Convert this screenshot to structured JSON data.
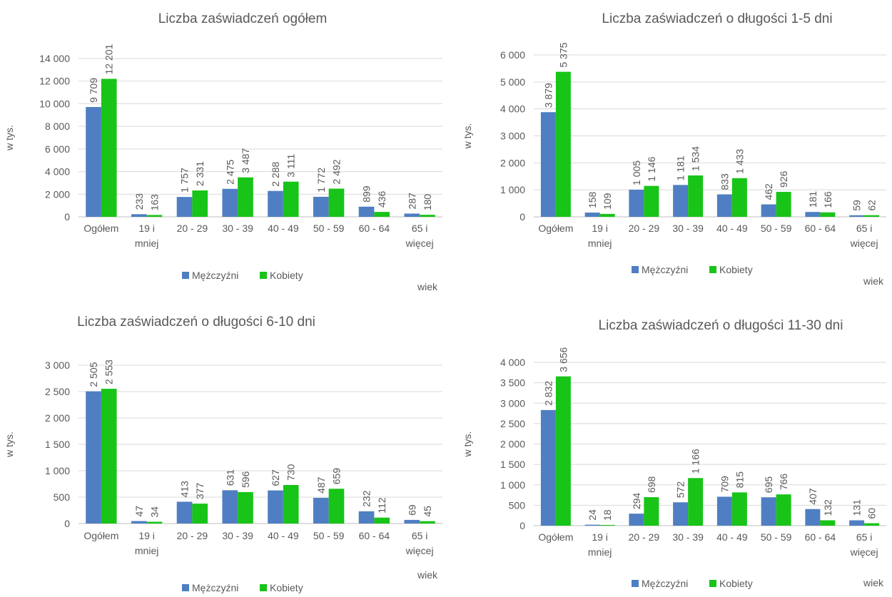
{
  "colors": {
    "men": "#4f7fc2",
    "women": "#18c418",
    "grid": "#d9d9d9",
    "text": "#595959"
  },
  "legend": {
    "men": "Mężczyźni",
    "women": "Kobiety"
  },
  "chart_data": [
    {
      "type": "bar",
      "title": "Liczba zaświadczeń ogółem",
      "xlabel": "wiek",
      "ylabel": "w tys.",
      "ylim": [
        0,
        14000
      ],
      "yticks": [
        0,
        2000,
        4000,
        6000,
        8000,
        10000,
        12000,
        14000
      ],
      "ytick_labels": [
        "0",
        "2 000",
        "4 000",
        "6 000",
        "8 000",
        "10 000",
        "12 000",
        "14 000"
      ],
      "categories": [
        [
          "Ogółem"
        ],
        [
          "19 i",
          "mniej"
        ],
        [
          "20 - 29"
        ],
        [
          "30 - 39"
        ],
        [
          "40 - 49"
        ],
        [
          "50 - 59"
        ],
        [
          "60 - 64"
        ],
        [
          "65 i",
          "więcej"
        ]
      ],
      "series": [
        {
          "name": "Mężczyźni",
          "values": [
            9709,
            233,
            1757,
            2475,
            2288,
            1772,
            899,
            287
          ],
          "labels": [
            "9 709",
            "233",
            "1 757",
            "2 475",
            "2 288",
            "1 772",
            "899",
            "287"
          ]
        },
        {
          "name": "Kobiety",
          "values": [
            12201,
            163,
            2331,
            3487,
            3111,
            2492,
            436,
            180
          ],
          "labels": [
            "12 201",
            "163",
            "2 331",
            "3 487",
            "3 111",
            "2 492",
            "436",
            "180"
          ]
        }
      ],
      "legend_position": "bottom",
      "grid": true
    },
    {
      "type": "bar",
      "title": "Liczba zaświadczeń o długości 1-5 dni",
      "xlabel": "wiek",
      "ylabel": "w tys.",
      "ylim": [
        0,
        6000
      ],
      "yticks": [
        0,
        1000,
        2000,
        3000,
        4000,
        5000,
        6000
      ],
      "ytick_labels": [
        "0",
        "1 000",
        "2 000",
        "3 000",
        "4 000",
        "5 000",
        "6 000"
      ],
      "categories": [
        [
          "Ogółem"
        ],
        [
          "19 i",
          "mniej"
        ],
        [
          "20 - 29"
        ],
        [
          "30 - 39"
        ],
        [
          "40 - 49"
        ],
        [
          "50 - 59"
        ],
        [
          "60 - 64"
        ],
        [
          "65 i",
          "więcej"
        ]
      ],
      "series": [
        {
          "name": "Mężczyźni",
          "values": [
            3879,
            158,
            1005,
            1181,
            833,
            462,
            181,
            59
          ],
          "labels": [
            "3 879",
            "158",
            "1 005",
            "1 181",
            "833",
            "462",
            "181",
            "59"
          ]
        },
        {
          "name": "Kobiety",
          "values": [
            5375,
            109,
            1146,
            1534,
            1433,
            926,
            166,
            62
          ],
          "labels": [
            "5 375",
            "109",
            "1 146",
            "1 534",
            "1 433",
            "926",
            "166",
            "62"
          ]
        }
      ],
      "legend_position": "bottom",
      "grid": true
    },
    {
      "type": "bar",
      "title": "Liczba zaświadczeń o długości 6-10 dni",
      "xlabel": "wiek",
      "ylabel": "w tys.",
      "ylim": [
        0,
        3000
      ],
      "yticks": [
        0,
        500,
        1000,
        1500,
        2000,
        2500,
        3000
      ],
      "ytick_labels": [
        "0",
        "500",
        "1 000",
        "1 500",
        "2 000",
        "2 500",
        "3 000"
      ],
      "categories": [
        [
          "Ogółem"
        ],
        [
          "19 i",
          "mniej"
        ],
        [
          "20 - 29"
        ],
        [
          "30 - 39"
        ],
        [
          "40 - 49"
        ],
        [
          "50 - 59"
        ],
        [
          "60 - 64"
        ],
        [
          "65 i",
          "więcej"
        ]
      ],
      "series": [
        {
          "name": "Mężczyźni",
          "values": [
            2505,
            47,
            413,
            631,
            627,
            487,
            232,
            69
          ],
          "labels": [
            "2 505",
            "47",
            "413",
            "631",
            "627",
            "487",
            "232",
            "69"
          ]
        },
        {
          "name": "Kobiety",
          "values": [
            2553,
            34,
            377,
            596,
            730,
            659,
            112,
            45
          ],
          "labels": [
            "2 553",
            "34",
            "377",
            "596",
            "730",
            "659",
            "112",
            "45"
          ]
        }
      ],
      "legend_position": "bottom",
      "grid": true
    },
    {
      "type": "bar",
      "title": "Liczba zaświadczeń o długości 11-30 dni",
      "xlabel": "wiek",
      "ylabel": "w tys.",
      "ylim": [
        0,
        4000
      ],
      "yticks": [
        0,
        500,
        1000,
        1500,
        2000,
        2500,
        3000,
        3500,
        4000
      ],
      "ytick_labels": [
        "0",
        "500",
        "1 000",
        "1 500",
        "2 000",
        "2 500",
        "3 000",
        "3 500",
        "4 000"
      ],
      "categories": [
        [
          "Ogółem"
        ],
        [
          "19 i",
          "mniej"
        ],
        [
          "20 - 29"
        ],
        [
          "30 - 39"
        ],
        [
          "40 - 49"
        ],
        [
          "50 - 59"
        ],
        [
          "60 - 64"
        ],
        [
          "65 i",
          "więcej"
        ]
      ],
      "series": [
        {
          "name": "Mężczyźni",
          "values": [
            2832,
            24,
            294,
            572,
            709,
            695,
            407,
            131
          ],
          "labels": [
            "2 832",
            "24",
            "294",
            "572",
            "709",
            "695",
            "407",
            "131"
          ]
        },
        {
          "name": "Kobiety",
          "values": [
            3656,
            18,
            698,
            1166,
            815,
            766,
            132,
            60
          ],
          "labels": [
            "3 656",
            "18",
            "698",
            "1 166",
            "815",
            "766",
            "132",
            "60"
          ]
        }
      ],
      "legend_position": "bottom",
      "grid": true
    }
  ]
}
